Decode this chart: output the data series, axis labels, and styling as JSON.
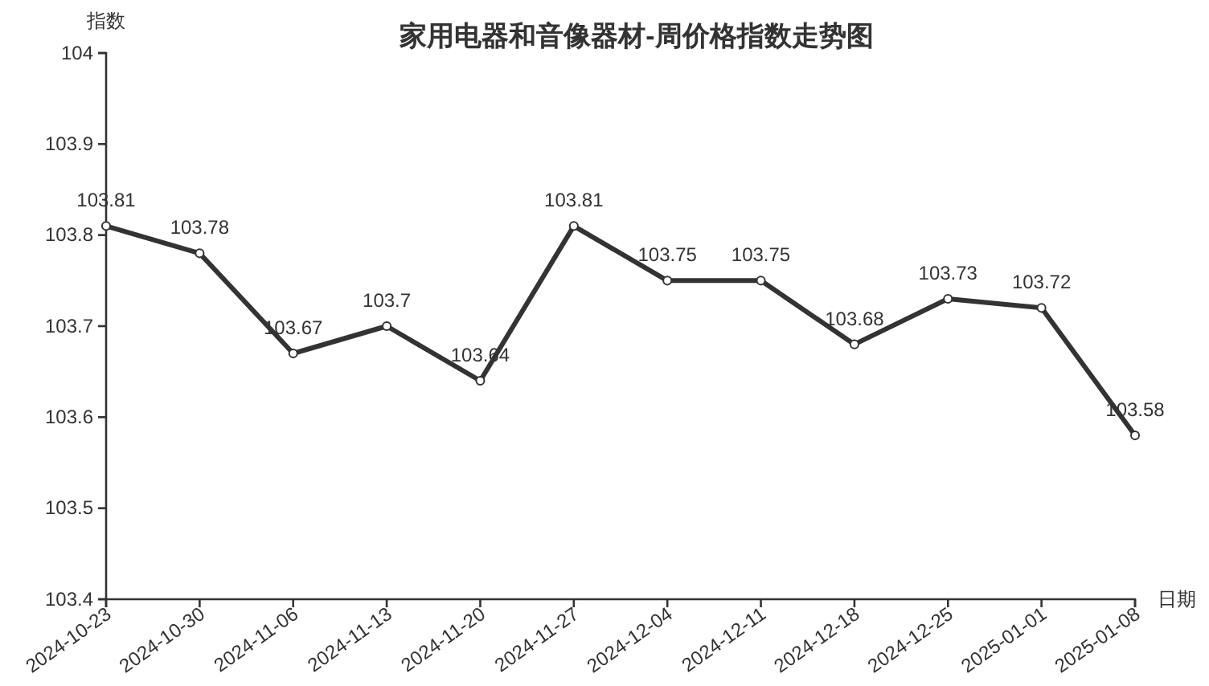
{
  "chart_data": {
    "type": "line",
    "title": "家用电器和音像器材-周价格指数走势图",
    "xlabel": "日期",
    "ylabel": "指数",
    "categories": [
      "2024-10-23",
      "2024-10-30",
      "2024-11-06",
      "2024-11-13",
      "2024-11-20",
      "2024-11-27",
      "2024-12-04",
      "2024-12-11",
      "2024-12-18",
      "2024-12-25",
      "2025-01-01",
      "2025-01-08"
    ],
    "series": [
      {
        "color": "#333333",
        "values": [
          103.81,
          103.78,
          103.67,
          103.7,
          103.64,
          103.81,
          103.75,
          103.75,
          103.68,
          103.73,
          103.72,
          103.58
        ]
      }
    ],
    "ylim": [
      103.4,
      104
    ],
    "yticks": [
      103.4,
      103.5,
      103.6,
      103.7,
      103.8,
      103.9,
      104
    ],
    "data_labels": true,
    "marker": "circle",
    "line_style": "solid",
    "grid": false
  }
}
